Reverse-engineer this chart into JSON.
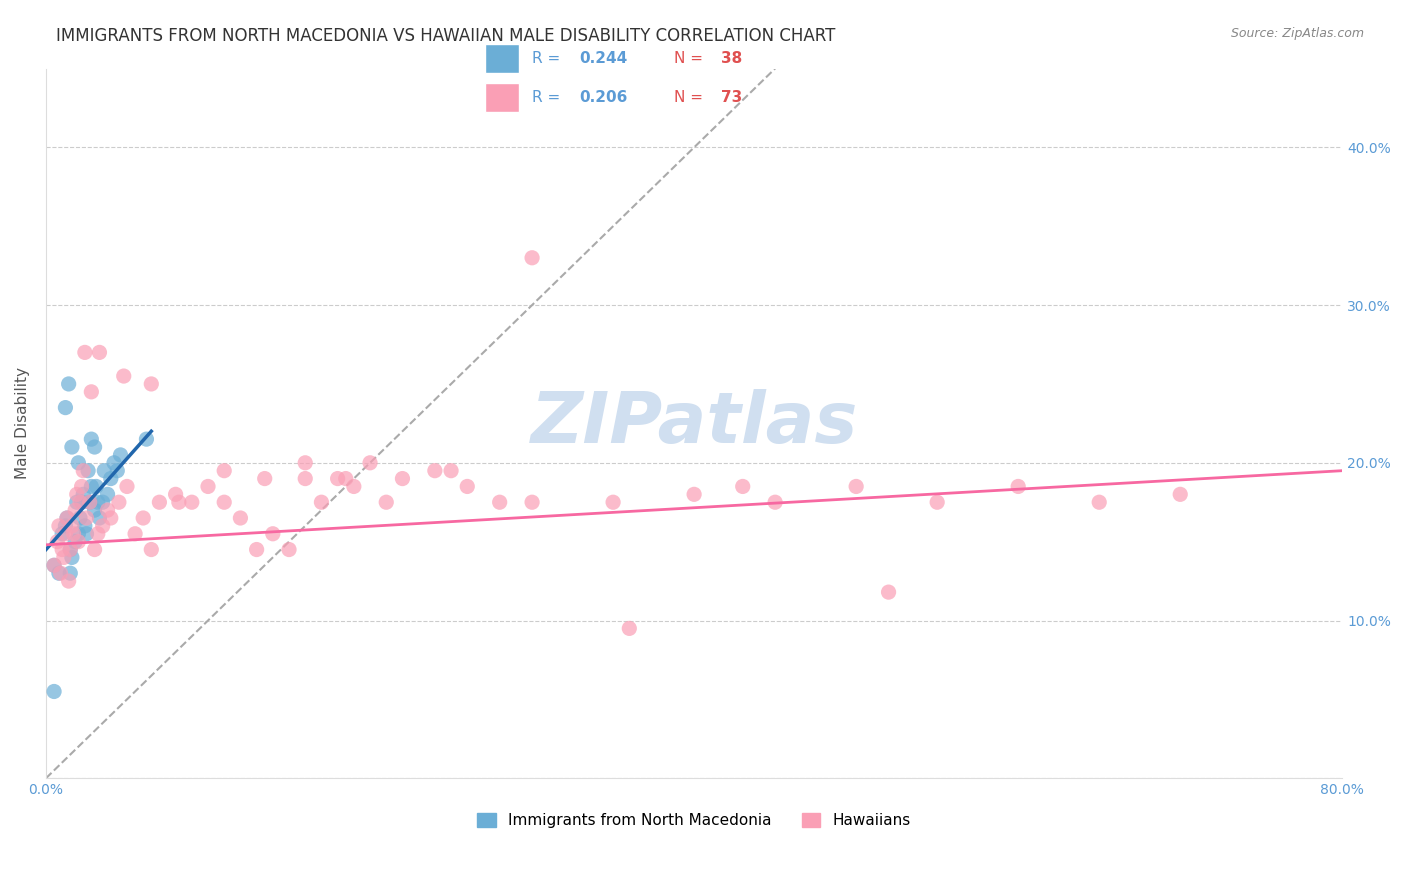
{
  "title": "IMMIGRANTS FROM NORTH MACEDONIA VS HAWAIIAN MALE DISABILITY CORRELATION CHART",
  "source": "Source: ZipAtlas.com",
  "ylabel": "Male Disability",
  "xlim": [
    0.0,
    0.8
  ],
  "ylim": [
    0.0,
    0.45
  ],
  "legend_r1": "0.244",
  "legend_n1": "38",
  "legend_r2": "0.206",
  "legend_n2": "73",
  "legend_label1": "Immigrants from North Macedonia",
  "legend_label2": "Hawaiians",
  "blue_color": "#6baed6",
  "pink_color": "#fa9fb5",
  "blue_line_color": "#2166ac",
  "pink_line_color": "#f768a1",
  "diagonal_color": "#aaaaaa",
  "watermark": "ZIPatlas",
  "watermark_color": "#d0dff0",
  "title_fontsize": 12,
  "axis_label_fontsize": 11,
  "tick_fontsize": 10,
  "blue_scatter_x": [
    0.005,
    0.008,
    0.01,
    0.012,
    0.013,
    0.015,
    0.015,
    0.016,
    0.018,
    0.019,
    0.02,
    0.021,
    0.022,
    0.023,
    0.024,
    0.025,
    0.026,
    0.027,
    0.028,
    0.03,
    0.031,
    0.032,
    0.033,
    0.035,
    0.036,
    0.038,
    0.04,
    0.042,
    0.044,
    0.046,
    0.012,
    0.014,
    0.016,
    0.02,
    0.028,
    0.03,
    0.062,
    0.005
  ],
  "blue_scatter_y": [
    0.135,
    0.13,
    0.155,
    0.16,
    0.165,
    0.13,
    0.145,
    0.14,
    0.15,
    0.175,
    0.155,
    0.165,
    0.175,
    0.18,
    0.16,
    0.155,
    0.195,
    0.175,
    0.185,
    0.17,
    0.185,
    0.175,
    0.165,
    0.175,
    0.195,
    0.18,
    0.19,
    0.2,
    0.195,
    0.205,
    0.235,
    0.25,
    0.21,
    0.2,
    0.215,
    0.21,
    0.215,
    0.055
  ],
  "pink_scatter_x": [
    0.005,
    0.007,
    0.008,
    0.009,
    0.01,
    0.011,
    0.012,
    0.013,
    0.014,
    0.015,
    0.016,
    0.017,
    0.018,
    0.019,
    0.02,
    0.021,
    0.022,
    0.023,
    0.025,
    0.027,
    0.03,
    0.032,
    0.035,
    0.038,
    0.04,
    0.045,
    0.05,
    0.055,
    0.06,
    0.065,
    0.07,
    0.08,
    0.09,
    0.1,
    0.11,
    0.12,
    0.13,
    0.14,
    0.15,
    0.16,
    0.17,
    0.18,
    0.19,
    0.2,
    0.22,
    0.24,
    0.26,
    0.28,
    0.3,
    0.35,
    0.4,
    0.45,
    0.5,
    0.55,
    0.6,
    0.65,
    0.7,
    0.024,
    0.028,
    0.033,
    0.048,
    0.065,
    0.082,
    0.11,
    0.135,
    0.16,
    0.185,
    0.21,
    0.25,
    0.3,
    0.36,
    0.43,
    0.52
  ],
  "pink_scatter_y": [
    0.135,
    0.15,
    0.16,
    0.13,
    0.145,
    0.14,
    0.155,
    0.165,
    0.125,
    0.145,
    0.16,
    0.155,
    0.17,
    0.18,
    0.15,
    0.175,
    0.185,
    0.195,
    0.165,
    0.175,
    0.145,
    0.155,
    0.16,
    0.17,
    0.165,
    0.175,
    0.185,
    0.155,
    0.165,
    0.145,
    0.175,
    0.18,
    0.175,
    0.185,
    0.175,
    0.165,
    0.145,
    0.155,
    0.145,
    0.19,
    0.175,
    0.19,
    0.185,
    0.2,
    0.19,
    0.195,
    0.185,
    0.175,
    0.175,
    0.175,
    0.18,
    0.175,
    0.185,
    0.175,
    0.185,
    0.175,
    0.18,
    0.27,
    0.245,
    0.27,
    0.255,
    0.25,
    0.175,
    0.195,
    0.19,
    0.2,
    0.19,
    0.175,
    0.195,
    0.33,
    0.095,
    0.185,
    0.118
  ],
  "blue_line_x": [
    0.0,
    0.065
  ],
  "blue_line_y": [
    0.145,
    0.22
  ],
  "pink_line_x": [
    0.0,
    0.8
  ],
  "pink_line_y": [
    0.148,
    0.195
  ],
  "diag_line_x": [
    0.0,
    0.45
  ],
  "diag_line_y": [
    0.0,
    0.45
  ]
}
